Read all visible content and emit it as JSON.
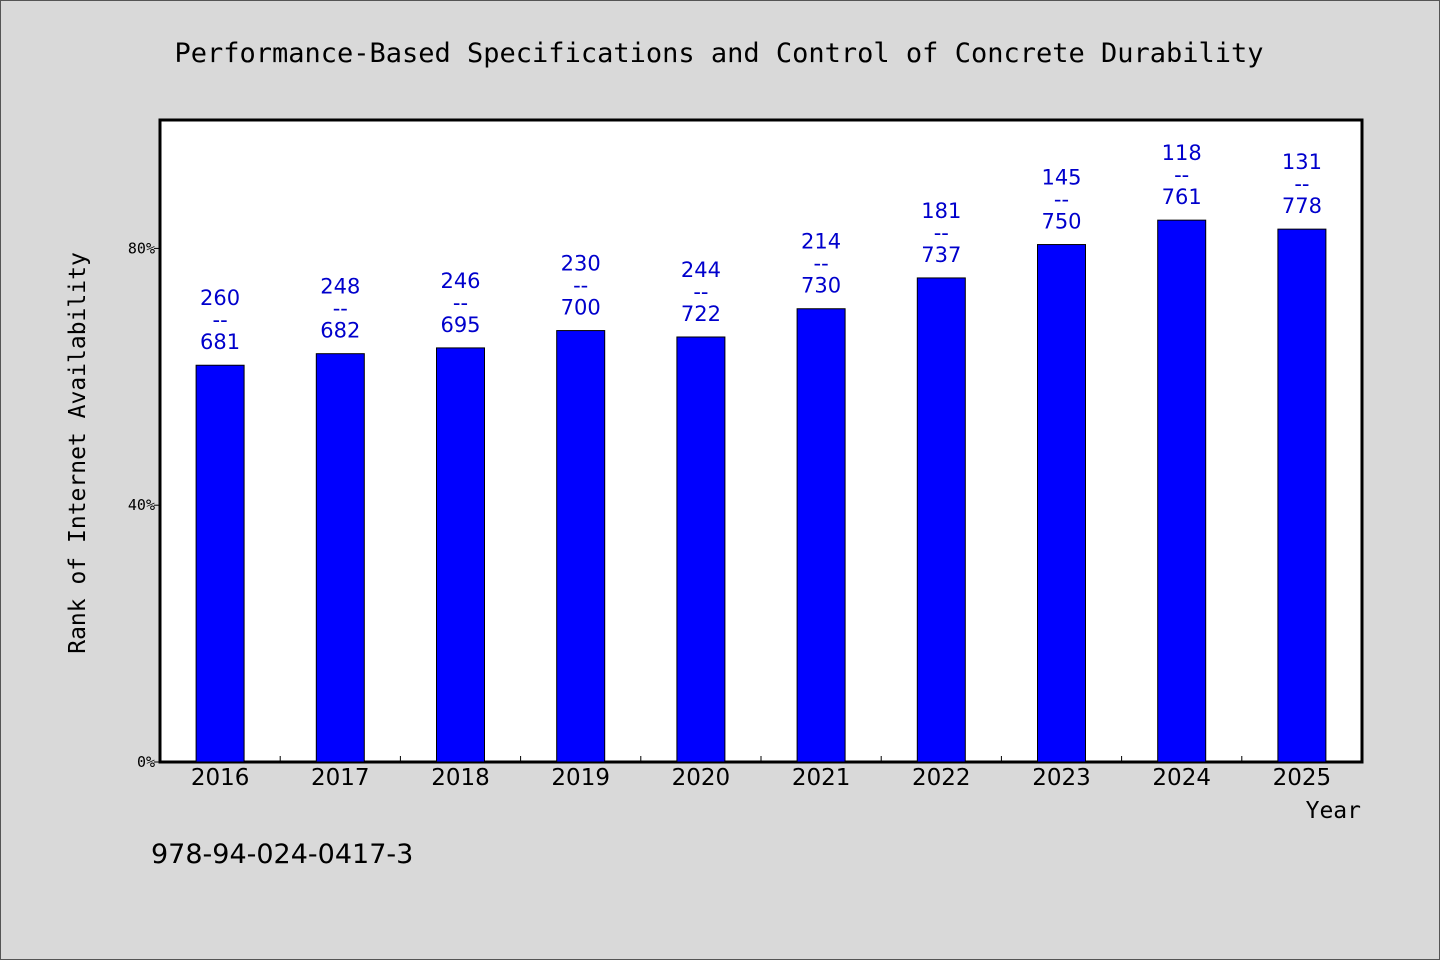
{
  "chart_data": {
    "type": "bar",
    "title": "Performance-Based Specifications and Control of Concrete Durability",
    "xlabel": "Year",
    "ylabel": "Rank of Internet Availability",
    "categories": [
      "2016",
      "2017",
      "2018",
      "2019",
      "2020",
      "2021",
      "2022",
      "2023",
      "2024",
      "2025"
    ],
    "values": [
      61.8,
      63.6,
      64.5,
      67.2,
      66.2,
      70.6,
      75.4,
      80.6,
      84.4,
      83.0
    ],
    "value_unit": "%",
    "ylim": [
      0,
      100
    ],
    "yticks": [
      0,
      40,
      80
    ],
    "ytick_labels": [
      "0%",
      "40%",
      "80%"
    ],
    "bar_labels": [
      {
        "top": "260",
        "sep": "--",
        "bottom": "681"
      },
      {
        "top": "248",
        "sep": "--",
        "bottom": "682"
      },
      {
        "top": "246",
        "sep": "--",
        "bottom": "695"
      },
      {
        "top": "230",
        "sep": "--",
        "bottom": "700"
      },
      {
        "top": "244",
        "sep": "--",
        "bottom": "722"
      },
      {
        "top": "214",
        "sep": "--",
        "bottom": "730"
      },
      {
        "top": "181",
        "sep": "--",
        "bottom": "737"
      },
      {
        "top": "145",
        "sep": "--",
        "bottom": "750"
      },
      {
        "top": "118",
        "sep": "--",
        "bottom": "761"
      },
      {
        "top": "131",
        "sep": "--",
        "bottom": "778"
      }
    ],
    "grid": false,
    "legend": "none",
    "colors": {
      "bar": "#0000ff",
      "label": "#0000cc",
      "plot_background": "#ffffff",
      "figure_background": "#d9d9d9",
      "axis": "#000000"
    }
  },
  "footer_text": "978-94-024-0417-3"
}
